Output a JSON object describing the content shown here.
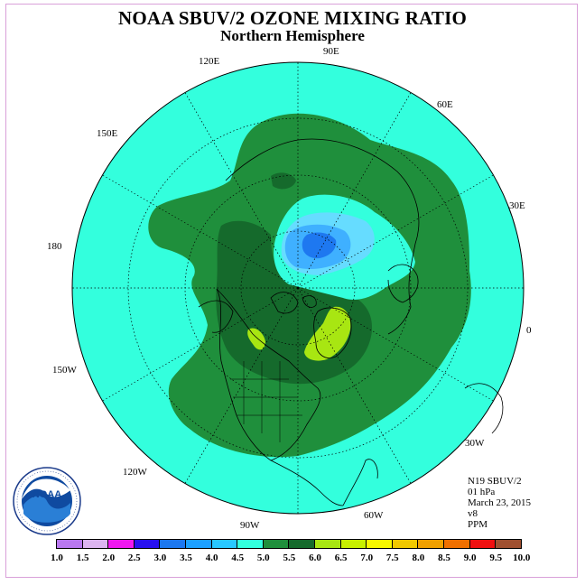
{
  "title": "NOAA SBUV/2 OZONE MIXING RATIO",
  "subtitle": "Northern Hemisphere",
  "longitude_labels": [
    "90E",
    "60E",
    "30E",
    "0",
    "30W",
    "60W",
    "90W",
    "120W",
    "150W",
    "180",
    "150E",
    "120E"
  ],
  "info": {
    "satellite": "N19 SBUV/2",
    "level": "01 hPa",
    "date": "March 23, 2015",
    "version": "v8",
    "units": "PPM"
  },
  "logo_text": "NOAA",
  "colors": {
    "background_level": "#33ffdd",
    "level_5_0": "#1f8f3c",
    "level_5_5": "#156a2c",
    "level_4_0": "#66dcff",
    "level_3_5": "#3fb0ff",
    "level_3_0": "#1e78f0",
    "level_6_0": "#a8e612",
    "land_outline": "#000000"
  },
  "colorbar": {
    "labels": [
      "1.0",
      "1.5",
      "2.0",
      "2.5",
      "3.0",
      "3.5",
      "4.0",
      "4.5",
      "5.0",
      "5.5",
      "6.0",
      "6.5",
      "7.0",
      "7.5",
      "8.0",
      "8.5",
      "9.0",
      "9.5",
      "10.0"
    ],
    "colors": [
      "#b978f0",
      "#dcb4f0",
      "#f018f0",
      "#2810f0",
      "#1c78f0",
      "#1ca0ff",
      "#28c8ff",
      "#33ffdd",
      "#1f8f3c",
      "#156a2c",
      "#a8e612",
      "#c8f000",
      "#f8f800",
      "#f0c800",
      "#f0a000",
      "#f07000",
      "#f01010",
      "#a05030"
    ]
  }
}
